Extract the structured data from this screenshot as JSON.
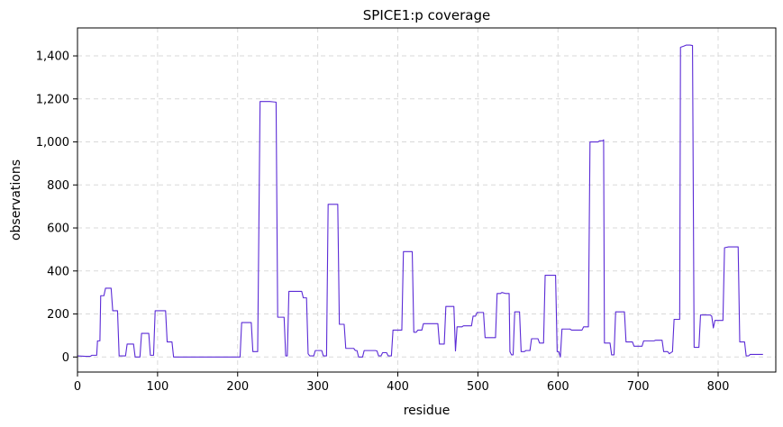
{
  "chart_data": {
    "type": "line",
    "title": "SPICE1:p coverage",
    "xlabel": "residue",
    "ylabel": "observations",
    "xlim": [
      0,
      872
    ],
    "ylim": [
      -70,
      1530
    ],
    "grid": true,
    "xticks": [
      0,
      100,
      200,
      300,
      400,
      500,
      600,
      700,
      800
    ],
    "xtick_labels": [
      "0",
      "100",
      "200",
      "300",
      "400",
      "500",
      "600",
      "700",
      "800"
    ],
    "yticks": [
      0,
      200,
      400,
      600,
      800,
      1000,
      1200,
      1400
    ],
    "ytick_labels": [
      "0",
      "200",
      "400",
      "600",
      "800",
      "1,000",
      "1,200",
      "1,400"
    ],
    "series": [
      {
        "name": "",
        "color": "#5b2bd6",
        "points": [
          [
            0,
            5
          ],
          [
            10,
            3
          ],
          [
            16,
            3
          ],
          [
            18,
            8
          ],
          [
            24,
            8
          ],
          [
            25,
            75
          ],
          [
            28,
            75
          ],
          [
            29,
            285
          ],
          [
            33,
            285
          ],
          [
            35,
            320
          ],
          [
            42,
            320
          ],
          [
            44,
            215
          ],
          [
            50,
            215
          ],
          [
            52,
            5
          ],
          [
            60,
            5
          ],
          [
            62,
            60
          ],
          [
            70,
            60
          ],
          [
            72,
            0
          ],
          [
            78,
            0
          ],
          [
            80,
            110
          ],
          [
            89,
            110
          ],
          [
            91,
            8
          ],
          [
            95,
            8
          ],
          [
            97,
            215
          ],
          [
            110,
            215
          ],
          [
            112,
            70
          ],
          [
            118,
            70
          ],
          [
            120,
            0
          ],
          [
            150,
            0
          ],
          [
            203,
            0
          ],
          [
            205,
            160
          ],
          [
            217,
            160
          ],
          [
            219,
            25
          ],
          [
            225,
            25
          ],
          [
            228,
            1188
          ],
          [
            240,
            1188
          ],
          [
            245,
            1186
          ],
          [
            248,
            1185
          ],
          [
            250,
            185
          ],
          [
            258,
            185
          ],
          [
            260,
            5
          ],
          [
            262,
            5
          ],
          [
            264,
            305
          ],
          [
            280,
            305
          ],
          [
            282,
            275
          ],
          [
            286,
            275
          ],
          [
            288,
            15
          ],
          [
            290,
            5
          ],
          [
            295,
            5
          ],
          [
            297,
            30
          ],
          [
            305,
            30
          ],
          [
            307,
            5
          ],
          [
            311,
            5
          ],
          [
            313,
            710
          ],
          [
            325,
            710
          ],
          [
            327,
            152
          ],
          [
            333,
            152
          ],
          [
            335,
            40
          ],
          [
            345,
            40
          ],
          [
            347,
            30
          ],
          [
            349,
            30
          ],
          [
            351,
            0
          ],
          [
            356,
            0
          ],
          [
            358,
            30
          ],
          [
            372,
            30
          ],
          [
            374,
            28
          ],
          [
            376,
            5
          ],
          [
            379,
            5
          ],
          [
            381,
            20
          ],
          [
            386,
            20
          ],
          [
            388,
            5
          ],
          [
            392,
            5
          ],
          [
            394,
            125
          ],
          [
            405,
            125
          ],
          [
            407,
            490
          ],
          [
            418,
            490
          ],
          [
            420,
            115
          ],
          [
            423,
            115
          ],
          [
            425,
            125
          ],
          [
            430,
            125
          ],
          [
            432,
            155
          ],
          [
            450,
            155
          ],
          [
            452,
            60
          ],
          [
            458,
            60
          ],
          [
            460,
            235
          ],
          [
            470,
            235
          ],
          [
            472,
            28
          ],
          [
            474,
            140
          ],
          [
            480,
            140
          ],
          [
            482,
            145
          ],
          [
            492,
            145
          ],
          [
            494,
            190
          ],
          [
            497,
            190
          ],
          [
            499,
            207
          ],
          [
            507,
            207
          ],
          [
            509,
            90
          ],
          [
            522,
            90
          ],
          [
            524,
            295
          ],
          [
            528,
            295
          ],
          [
            530,
            300
          ],
          [
            535,
            295
          ],
          [
            539,
            295
          ],
          [
            540,
            25
          ],
          [
            542,
            10
          ],
          [
            544,
            10
          ],
          [
            546,
            210
          ],
          [
            552,
            210
          ],
          [
            554,
            25
          ],
          [
            558,
            25
          ],
          [
            560,
            30
          ],
          [
            565,
            30
          ],
          [
            567,
            85
          ],
          [
            575,
            85
          ],
          [
            577,
            65
          ],
          [
            582,
            65
          ],
          [
            584,
            380
          ],
          [
            597,
            380
          ],
          [
            599,
            25
          ],
          [
            601,
            25
          ],
          [
            603,
            0
          ],
          [
            605,
            130
          ],
          [
            615,
            130
          ],
          [
            617,
            125
          ],
          [
            630,
            125
          ],
          [
            632,
            140
          ],
          [
            638,
            140
          ],
          [
            640,
            1000
          ],
          [
            650,
            1000
          ],
          [
            652,
            1005
          ],
          [
            656,
            1005
          ],
          [
            657,
            1010
          ],
          [
            658,
            65
          ],
          [
            665,
            65
          ],
          [
            667,
            10
          ],
          [
            670,
            10
          ],
          [
            672,
            210
          ],
          [
            683,
            210
          ],
          [
            685,
            70
          ],
          [
            693,
            70
          ],
          [
            695,
            50
          ],
          [
            705,
            50
          ],
          [
            707,
            75
          ],
          [
            720,
            75
          ],
          [
            722,
            78
          ],
          [
            730,
            78
          ],
          [
            732,
            25
          ],
          [
            737,
            25
          ],
          [
            739,
            15
          ],
          [
            743,
            25
          ],
          [
            745,
            175
          ],
          [
            752,
            175
          ],
          [
            753,
            1440
          ],
          [
            757,
            1445
          ],
          [
            760,
            1450
          ],
          [
            765,
            1450
          ],
          [
            768,
            1448
          ],
          [
            770,
            45
          ],
          [
            776,
            45
          ],
          [
            778,
            195
          ],
          [
            790,
            195
          ],
          [
            792,
            190
          ],
          [
            794,
            135
          ],
          [
            796,
            170
          ],
          [
            806,
            170
          ],
          [
            808,
            508
          ],
          [
            813,
            512
          ],
          [
            825,
            512
          ],
          [
            827,
            70
          ],
          [
            833,
            70
          ],
          [
            835,
            5
          ],
          [
            838,
            5
          ],
          [
            840,
            12
          ],
          [
            856,
            12
          ]
        ]
      }
    ]
  }
}
